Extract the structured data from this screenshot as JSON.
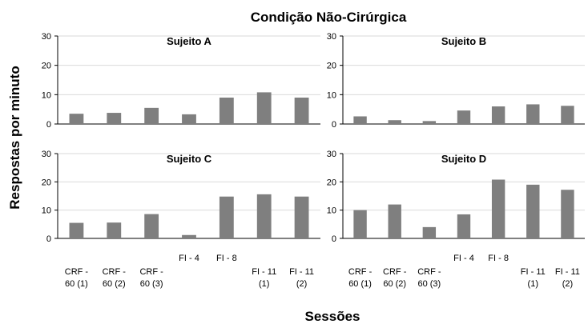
{
  "chart_data": [
    {
      "type": "bar",
      "title": "Sujeito A",
      "categories": [
        "CRF - 60 (1)",
        "CRF - 60 (2)",
        "CRF - 60 (3)",
        "FI - 4",
        "FI - 8",
        "FI - 11 (1)",
        "FI - 11 (2)"
      ],
      "values": [
        3.5,
        3.8,
        5.5,
        3.3,
        9.0,
        10.8,
        9.0
      ],
      "ylim": [
        0,
        30
      ],
      "yticks": [
        "0",
        "10",
        "20",
        "30"
      ]
    },
    {
      "type": "bar",
      "title": "Sujeito B",
      "categories": [
        "CRF - 60 (1)",
        "CRF - 60 (2)",
        "CRF - 60 (3)",
        "FI - 4",
        "FI - 8",
        "FI - 11 (1)",
        "FI - 11 (2)"
      ],
      "values": [
        2.6,
        1.3,
        1.0,
        4.6,
        6.0,
        6.7,
        6.2
      ],
      "ylim": [
        0,
        30
      ],
      "yticks": [
        "0",
        "10",
        "20",
        "30"
      ]
    },
    {
      "type": "bar",
      "title": "Sujeito C",
      "categories": [
        "CRF - 60 (1)",
        "CRF - 60 (2)",
        "CRF - 60 (3)",
        "FI - 4",
        "FI - 8",
        "FI - 11 (1)",
        "FI - 11 (2)"
      ],
      "values": [
        5.5,
        5.6,
        8.6,
        1.2,
        14.8,
        15.6,
        14.8
      ],
      "ylim": [
        0,
        30
      ],
      "yticks": [
        "0",
        "10",
        "20",
        "30"
      ]
    },
    {
      "type": "bar",
      "title": "Sujeito D",
      "categories": [
        "CRF - 60 (1)",
        "CRF - 60 (2)",
        "CRF - 60 (3)",
        "FI - 4",
        "FI - 8",
        "FI - 11 (1)",
        "FI - 11 (2)"
      ],
      "values": [
        10.0,
        12.0,
        4.0,
        8.5,
        20.8,
        19.0,
        17.2
      ],
      "ylim": [
        0,
        30
      ],
      "yticks": [
        "0",
        "10",
        "20",
        "30"
      ]
    }
  ],
  "figure": {
    "title": "Condição Não-Cirúrgica",
    "ylabel": "Respostas por minuto",
    "xlabel": "Sessões",
    "category_labels": [
      {
        "lines": [
          "CRF -",
          "60 (1)"
        ]
      },
      {
        "lines": [
          "CRF -",
          "60 (2)"
        ]
      },
      {
        "lines": [
          "CRF -",
          "60 (3)"
        ]
      },
      {
        "lines": [
          "FI - 4"
        ]
      },
      {
        "lines": [
          "FI - 8"
        ]
      },
      {
        "lines": [
          "FI - 11",
          "(1)"
        ]
      },
      {
        "lines": [
          "FI - 11",
          "(2)"
        ]
      }
    ]
  },
  "colors": {
    "bar": "#7f7f7f",
    "axis": "#000000",
    "grid": "#d9d9d9"
  }
}
